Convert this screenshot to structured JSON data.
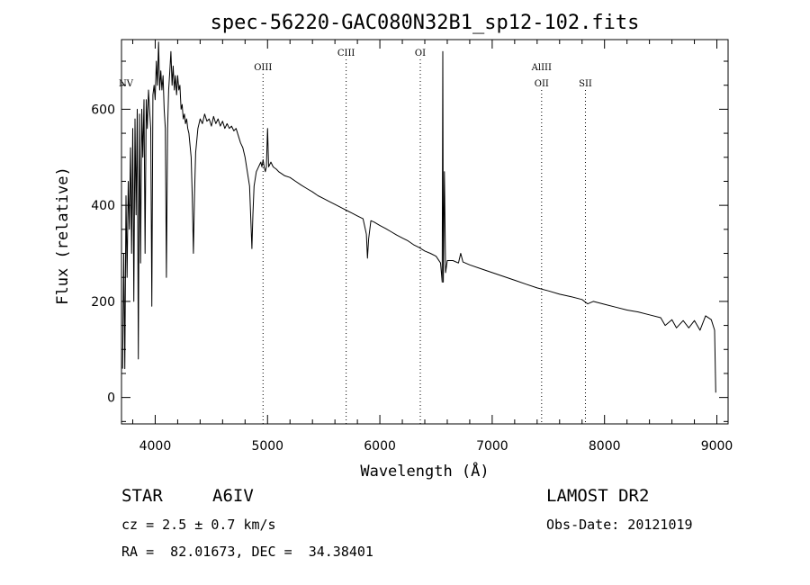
{
  "chart_data": {
    "type": "line",
    "title": "spec-56220-GAC080N32B1_sp12-102.fits",
    "xlabel": "Wavelength (Å)",
    "ylabel": "Flux (relative)",
    "xlim": [
      3700,
      9100
    ],
    "ylim": [
      -55,
      745
    ],
    "xticks": [
      4000,
      5000,
      6000,
      7000,
      8000,
      9000
    ],
    "yticks": [
      0,
      200,
      400,
      600
    ],
    "grid": false,
    "legend": "none",
    "line_color": "#000000",
    "line_labels": [
      {
        "label": "NV",
        "x": 3740,
        "row": "top",
        "dotted": false
      },
      {
        "label": "OIII",
        "x": 4960,
        "row": "mid",
        "dotted": true
      },
      {
        "label": "CIII",
        "x": 5700,
        "row": "high",
        "dotted": true
      },
      {
        "label": "OI",
        "x": 6360,
        "row": "high",
        "dotted": true
      },
      {
        "label": "AlIII",
        "x": 7440,
        "row": "mid",
        "dotted": false
      },
      {
        "label": "OII",
        "x": 7440,
        "row": "low",
        "dotted": true
      },
      {
        "label": "SII",
        "x": 7830,
        "row": "low",
        "dotted": true
      }
    ],
    "series": [
      {
        "values": [
          [
            3710,
            60
          ],
          [
            3720,
            300
          ],
          [
            3730,
            60
          ],
          [
            3740,
            420
          ],
          [
            3750,
            250
          ],
          [
            3760,
            450
          ],
          [
            3770,
            350
          ],
          [
            3780,
            520
          ],
          [
            3790,
            300
          ],
          [
            3800,
            560
          ],
          [
            3810,
            200
          ],
          [
            3820,
            580
          ],
          [
            3830,
            380
          ],
          [
            3840,
            600
          ],
          [
            3850,
            80
          ],
          [
            3860,
            590
          ],
          [
            3870,
            280
          ],
          [
            3880,
            600
          ],
          [
            3890,
            500
          ],
          [
            3900,
            620
          ],
          [
            3910,
            300
          ],
          [
            3920,
            620
          ],
          [
            3930,
            560
          ],
          [
            3940,
            640
          ],
          [
            3950,
            600
          ],
          [
            3960,
            560
          ],
          [
            3970,
            190
          ],
          [
            3980,
            630
          ],
          [
            3990,
            650
          ],
          [
            4000,
            620
          ],
          [
            4010,
            700
          ],
          [
            4020,
            650
          ],
          [
            4030,
            740
          ],
          [
            4040,
            640
          ],
          [
            4050,
            680
          ],
          [
            4060,
            640
          ],
          [
            4070,
            670
          ],
          [
            4080,
            600
          ],
          [
            4090,
            560
          ],
          [
            4100,
            250
          ],
          [
            4110,
            560
          ],
          [
            4120,
            640
          ],
          [
            4130,
            680
          ],
          [
            4140,
            720
          ],
          [
            4150,
            650
          ],
          [
            4160,
            690
          ],
          [
            4170,
            640
          ],
          [
            4180,
            670
          ],
          [
            4190,
            630
          ],
          [
            4200,
            670
          ],
          [
            4210,
            640
          ],
          [
            4220,
            650
          ],
          [
            4230,
            600
          ],
          [
            4240,
            610
          ],
          [
            4250,
            580
          ],
          [
            4260,
            590
          ],
          [
            4270,
            570
          ],
          [
            4280,
            580
          ],
          [
            4290,
            560
          ],
          [
            4300,
            550
          ],
          [
            4320,
            500
          ],
          [
            4330,
            420
          ],
          [
            4340,
            300
          ],
          [
            4350,
            420
          ],
          [
            4360,
            510
          ],
          [
            4380,
            560
          ],
          [
            4400,
            580
          ],
          [
            4420,
            570
          ],
          [
            4440,
            590
          ],
          [
            4460,
            575
          ],
          [
            4480,
            580
          ],
          [
            4500,
            565
          ],
          [
            4520,
            585
          ],
          [
            4540,
            570
          ],
          [
            4560,
            580
          ],
          [
            4580,
            565
          ],
          [
            4600,
            575
          ],
          [
            4620,
            560
          ],
          [
            4640,
            570
          ],
          [
            4660,
            560
          ],
          [
            4680,
            565
          ],
          [
            4700,
            555
          ],
          [
            4720,
            560
          ],
          [
            4740,
            545
          ],
          [
            4760,
            530
          ],
          [
            4780,
            520
          ],
          [
            4800,
            500
          ],
          [
            4820,
            470
          ],
          [
            4840,
            440
          ],
          [
            4850,
            380
          ],
          [
            4861,
            310
          ],
          [
            4870,
            380
          ],
          [
            4880,
            440
          ],
          [
            4900,
            470
          ],
          [
            4920,
            480
          ],
          [
            4940,
            490
          ],
          [
            4950,
            480
          ],
          [
            4960,
            495
          ],
          [
            4970,
            480
          ],
          [
            4980,
            470
          ],
          [
            4990,
            480
          ],
          [
            5000,
            560
          ],
          [
            5010,
            480
          ],
          [
            5030,
            490
          ],
          [
            5050,
            480
          ],
          [
            5080,
            475
          ],
          [
            5100,
            470
          ],
          [
            5150,
            462
          ],
          [
            5200,
            458
          ],
          [
            5250,
            450
          ],
          [
            5300,
            442
          ],
          [
            5350,
            435
          ],
          [
            5400,
            428
          ],
          [
            5450,
            420
          ],
          [
            5500,
            414
          ],
          [
            5550,
            408
          ],
          [
            5600,
            402
          ],
          [
            5650,
            396
          ],
          [
            5700,
            390
          ],
          [
            5750,
            384
          ],
          [
            5800,
            378
          ],
          [
            5850,
            372
          ],
          [
            5880,
            340
          ],
          [
            5890,
            290
          ],
          [
            5900,
            330
          ],
          [
            5920,
            368
          ],
          [
            5950,
            365
          ],
          [
            6000,
            358
          ],
          [
            6050,
            352
          ],
          [
            6100,
            345
          ],
          [
            6150,
            338
          ],
          [
            6200,
            332
          ],
          [
            6250,
            326
          ],
          [
            6300,
            318
          ],
          [
            6350,
            312
          ],
          [
            6400,
            305
          ],
          [
            6450,
            300
          ],
          [
            6500,
            294
          ],
          [
            6540,
            280
          ],
          [
            6555,
            240
          ],
          [
            6560,
            720
          ],
          [
            6565,
            240
          ],
          [
            6575,
            470
          ],
          [
            6585,
            260
          ],
          [
            6600,
            285
          ],
          [
            6650,
            285
          ],
          [
            6700,
            280
          ],
          [
            6720,
            300
          ],
          [
            6740,
            282
          ],
          [
            6800,
            276
          ],
          [
            6900,
            268
          ],
          [
            7000,
            260
          ],
          [
            7100,
            252
          ],
          [
            7200,
            244
          ],
          [
            7300,
            236
          ],
          [
            7400,
            228
          ],
          [
            7500,
            222
          ],
          [
            7600,
            215
          ],
          [
            7700,
            210
          ],
          [
            7800,
            204
          ],
          [
            7850,
            195
          ],
          [
            7900,
            200
          ],
          [
            8000,
            194
          ],
          [
            8100,
            188
          ],
          [
            8200,
            182
          ],
          [
            8300,
            178
          ],
          [
            8400,
            172
          ],
          [
            8500,
            166
          ],
          [
            8540,
            150
          ],
          [
            8600,
            162
          ],
          [
            8640,
            145
          ],
          [
            8700,
            160
          ],
          [
            8750,
            145
          ],
          [
            8800,
            160
          ],
          [
            8850,
            140
          ],
          [
            8900,
            170
          ],
          [
            8950,
            162
          ],
          [
            8980,
            140
          ],
          [
            8990,
            10
          ]
        ]
      }
    ]
  },
  "info": {
    "object_type": "STAR",
    "spectral_class": "A6IV",
    "cz": "cz = 2.5 ± 0.7 km/s",
    "coords": "RA =  82.01673, DEC =  34.38401",
    "survey": "LAMOST DR2",
    "obs_date": "Obs-Date: 20121019"
  }
}
